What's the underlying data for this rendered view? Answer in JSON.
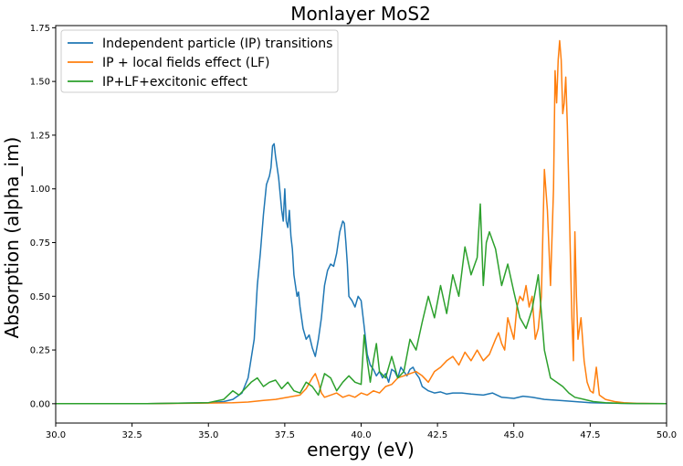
{
  "chart_data": {
    "type": "line",
    "title": "Monlayer MoS2",
    "xlabel": "energy (eV)",
    "ylabel": "Absorption (alpha_im)",
    "xlim": [
      30.0,
      50.0
    ],
    "ylim": [
      -0.09,
      1.76
    ],
    "x_ticks": [
      "30.0",
      "32.5",
      "35.0",
      "37.5",
      "40.0",
      "42.5",
      "45.0",
      "47.5",
      "50.0"
    ],
    "y_ticks": [
      "0.00",
      "0.25",
      "0.50",
      "0.75",
      "1.00",
      "1.25",
      "1.50",
      "1.75"
    ],
    "grid": false,
    "legend_position": "top-left",
    "series": [
      {
        "name": "Independent particle (IP) transitions",
        "color": "#1f77b4",
        "x": [
          30,
          33,
          35,
          35.5,
          35.8,
          36.1,
          36.3,
          36.5,
          36.6,
          36.7,
          36.8,
          36.9,
          37.0,
          37.05,
          37.1,
          37.15,
          37.2,
          37.3,
          37.4,
          37.45,
          37.5,
          37.55,
          37.6,
          37.65,
          37.7,
          37.75,
          37.8,
          37.85,
          37.9,
          37.95,
          38.0,
          38.1,
          38.2,
          38.3,
          38.4,
          38.5,
          38.6,
          38.7,
          38.8,
          38.9,
          39.0,
          39.1,
          39.2,
          39.3,
          39.4,
          39.45,
          39.5,
          39.55,
          39.6,
          39.7,
          39.8,
          39.9,
          40.0,
          40.1,
          40.2,
          40.3,
          40.4,
          40.5,
          40.6,
          40.7,
          40.8,
          40.9,
          41.0,
          41.1,
          41.2,
          41.3,
          41.4,
          41.5,
          41.6,
          41.7,
          41.8,
          41.9,
          42.0,
          42.1,
          42.2,
          42.4,
          42.6,
          42.8,
          43.0,
          43.3,
          43.6,
          44.0,
          44.3,
          44.6,
          45.0,
          45.3,
          45.6,
          46.0,
          46.5,
          47.0,
          47.5,
          48.0,
          49.0,
          50.0
        ],
        "y": [
          0,
          0,
          0.005,
          0.01,
          0.02,
          0.05,
          0.12,
          0.3,
          0.55,
          0.7,
          0.88,
          1.02,
          1.06,
          1.1,
          1.2,
          1.21,
          1.15,
          1.05,
          0.9,
          0.85,
          1.0,
          0.85,
          0.82,
          0.9,
          0.78,
          0.72,
          0.6,
          0.55,
          0.5,
          0.52,
          0.45,
          0.35,
          0.3,
          0.32,
          0.26,
          0.22,
          0.3,
          0.4,
          0.55,
          0.62,
          0.65,
          0.64,
          0.7,
          0.8,
          0.85,
          0.84,
          0.75,
          0.65,
          0.5,
          0.48,
          0.45,
          0.5,
          0.48,
          0.36,
          0.23,
          0.18,
          0.16,
          0.13,
          0.15,
          0.12,
          0.14,
          0.1,
          0.16,
          0.15,
          0.12,
          0.17,
          0.15,
          0.13,
          0.16,
          0.17,
          0.14,
          0.12,
          0.08,
          0.07,
          0.06,
          0.05,
          0.055,
          0.045,
          0.05,
          0.05,
          0.045,
          0.04,
          0.05,
          0.03,
          0.025,
          0.035,
          0.03,
          0.02,
          0.015,
          0.01,
          0.005,
          0.003,
          0.001,
          0
        ]
      },
      {
        "name": "IP + local fields effect (LF)",
        "color": "#ff7f0e",
        "x": [
          30,
          33,
          35,
          35.8,
          36.3,
          36.8,
          37.2,
          37.6,
          38.0,
          38.2,
          38.4,
          38.5,
          38.6,
          38.7,
          38.8,
          39.0,
          39.2,
          39.4,
          39.6,
          39.8,
          40.0,
          40.2,
          40.4,
          40.6,
          40.8,
          41.0,
          41.2,
          41.4,
          41.6,
          41.8,
          42.0,
          42.2,
          42.4,
          42.6,
          42.8,
          43.0,
          43.2,
          43.4,
          43.6,
          43.8,
          44.0,
          44.2,
          44.4,
          44.5,
          44.6,
          44.7,
          44.8,
          44.9,
          45.0,
          45.1,
          45.2,
          45.3,
          45.4,
          45.5,
          45.6,
          45.7,
          45.8,
          45.9,
          46.0,
          46.1,
          46.2,
          46.3,
          46.35,
          46.4,
          46.45,
          46.5,
          46.55,
          46.6,
          46.65,
          46.7,
          46.75,
          46.8,
          46.85,
          46.9,
          46.95,
          47.0,
          47.05,
          47.1,
          47.2,
          47.3,
          47.4,
          47.5,
          47.6,
          47.7,
          47.8,
          48.0,
          48.3,
          48.6,
          49.0,
          49.5,
          50.0
        ],
        "y": [
          0,
          0,
          0.003,
          0.005,
          0.008,
          0.015,
          0.02,
          0.03,
          0.04,
          0.07,
          0.12,
          0.14,
          0.1,
          0.05,
          0.03,
          0.04,
          0.05,
          0.03,
          0.04,
          0.03,
          0.05,
          0.04,
          0.06,
          0.05,
          0.08,
          0.09,
          0.12,
          0.13,
          0.14,
          0.15,
          0.13,
          0.1,
          0.15,
          0.17,
          0.2,
          0.22,
          0.18,
          0.24,
          0.2,
          0.25,
          0.2,
          0.23,
          0.3,
          0.33,
          0.28,
          0.25,
          0.4,
          0.35,
          0.3,
          0.45,
          0.5,
          0.48,
          0.55,
          0.45,
          0.5,
          0.3,
          0.35,
          0.5,
          1.09,
          0.9,
          0.55,
          1.0,
          1.55,
          1.4,
          1.6,
          1.69,
          1.6,
          1.35,
          1.4,
          1.52,
          1.3,
          1.0,
          0.7,
          0.4,
          0.2,
          0.8,
          0.5,
          0.3,
          0.4,
          0.2,
          0.1,
          0.06,
          0.05,
          0.17,
          0.04,
          0.02,
          0.01,
          0.005,
          0.002,
          0.001,
          0
        ]
      },
      {
        "name": "IP+LF+excitonic effect",
        "color": "#2ca02c",
        "x": [
          30,
          33,
          35,
          35.5,
          35.8,
          36.0,
          36.2,
          36.4,
          36.6,
          36.8,
          37.0,
          37.2,
          37.4,
          37.6,
          37.8,
          38.0,
          38.2,
          38.4,
          38.6,
          38.8,
          39.0,
          39.2,
          39.4,
          39.6,
          39.8,
          40.0,
          40.1,
          40.2,
          40.3,
          40.4,
          40.5,
          40.6,
          40.8,
          41.0,
          41.2,
          41.4,
          41.6,
          41.8,
          42.0,
          42.2,
          42.4,
          42.6,
          42.8,
          43.0,
          43.2,
          43.4,
          43.6,
          43.8,
          43.9,
          44.0,
          44.1,
          44.2,
          44.4,
          44.6,
          44.8,
          45.0,
          45.2,
          45.4,
          45.6,
          45.8,
          46.0,
          46.2,
          46.4,
          46.6,
          46.8,
          47.0,
          47.3,
          47.6,
          48.0,
          48.5,
          49.0,
          50.0
        ],
        "y": [
          0,
          0,
          0.005,
          0.02,
          0.06,
          0.04,
          0.07,
          0.1,
          0.12,
          0.08,
          0.1,
          0.11,
          0.07,
          0.1,
          0.06,
          0.05,
          0.1,
          0.08,
          0.04,
          0.14,
          0.12,
          0.06,
          0.1,
          0.13,
          0.1,
          0.09,
          0.32,
          0.2,
          0.1,
          0.2,
          0.28,
          0.15,
          0.12,
          0.22,
          0.12,
          0.15,
          0.3,
          0.25,
          0.38,
          0.5,
          0.4,
          0.55,
          0.42,
          0.6,
          0.5,
          0.73,
          0.6,
          0.68,
          0.93,
          0.55,
          0.75,
          0.8,
          0.72,
          0.55,
          0.65,
          0.52,
          0.4,
          0.35,
          0.44,
          0.6,
          0.25,
          0.12,
          0.1,
          0.08,
          0.05,
          0.03,
          0.02,
          0.01,
          0.005,
          0.002,
          0.001,
          0
        ]
      }
    ]
  }
}
